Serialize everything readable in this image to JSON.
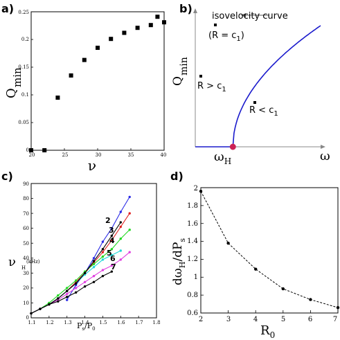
{
  "colors": {
    "c_line": "#2222cc",
    "c_s1": "#000000",
    "c_s2": "#2a2ae6",
    "c_s3": "#e02020",
    "c_s4": "#22d822",
    "c_s5": "#22d8d8",
    "c_s6": "#e040e0",
    "c_s7": "#000000",
    "b_curve": "#1a1acc",
    "b_point": "#cc2255"
  },
  "chart_data": [
    {
      "type": "scatter",
      "panel_label": "a)",
      "xlabel": "ν",
      "ylabel_main": "Q",
      "ylabel_sub": "min",
      "xlim": [
        20,
        40
      ],
      "ylim": [
        0,
        0.25
      ],
      "xticks": [
        "20",
        "25",
        "30",
        "35",
        "40"
      ],
      "yticks": [
        "0",
        "0.05",
        "0.1",
        "0.15",
        "0.2",
        "0.25"
      ],
      "x": [
        20,
        22,
        24,
        26,
        28,
        30,
        32,
        34,
        36,
        38,
        39,
        40
      ],
      "y": [
        0.0,
        0.0,
        0.095,
        0.135,
        0.163,
        0.185,
        0.201,
        0.212,
        0.221,
        0.226,
        0.241,
        0.231
      ]
    },
    {
      "type": "line",
      "panel_label": "b)",
      "xlabel": "ω",
      "ylabel_main": "Q",
      "ylabel_sub": "min",
      "point_label_main": "ω",
      "point_label_sub": "H",
      "annotation": "isovelocity curve",
      "label_equal": "(R = c",
      "label_equal_sub": "1",
      "label_equal_close": ")",
      "label_greater": "R > c",
      "label_greater_sub": "1",
      "label_less": "R < c",
      "label_less_sub": "1",
      "omega_h": 0.3,
      "curve_shape": "sqrt"
    },
    {
      "type": "line",
      "panel_label": "c)",
      "xlabel_main": "P",
      "xlabel_sub1": "s",
      "xlabel_div": "/P",
      "xlabel_sub2": "0",
      "ylabel_main": "ν",
      "ylabel_sub": "H",
      "ylabel_unit": "(kHz)",
      "xlim": [
        1.1,
        1.8
      ],
      "ylim": [
        0,
        90
      ],
      "xticks": [
        "1.1",
        "1.2",
        "1.3",
        "1.4",
        "1.5",
        "1.6",
        "1.7",
        "1.8"
      ],
      "yticks": [
        "0",
        "10",
        "20",
        "30",
        "40",
        "50",
        "60",
        "70",
        "80",
        "90"
      ],
      "series": [
        {
          "name": "2",
          "color_key": "c_s2",
          "x": [
            1.3,
            1.35,
            1.4,
            1.45,
            1.5,
            1.55,
            1.6,
            1.65
          ],
          "y": [
            12,
            22,
            30,
            40,
            51,
            60,
            71,
            81
          ]
        },
        {
          "name": "3",
          "color_key": "c_s3",
          "x": [
            1.1,
            1.15,
            1.2,
            1.25,
            1.3,
            1.35,
            1.4,
            1.45,
            1.5,
            1.55,
            1.6,
            1.65
          ],
          "y": [
            3,
            6,
            9,
            13,
            18,
            24,
            30,
            37,
            44,
            52,
            61,
            70
          ]
        },
        {
          "name": "4",
          "color_key": "c_s4",
          "x": [
            1.1,
            1.15,
            1.2,
            1.25,
            1.3,
            1.35,
            1.4,
            1.45,
            1.5,
            1.55,
            1.6,
            1.65
          ],
          "y": [
            3,
            6,
            10,
            15,
            20,
            25,
            31,
            36,
            41,
            46,
            53,
            59
          ]
        },
        {
          "name": "5",
          "color_key": "c_s5",
          "x": [
            1.1,
            1.15,
            1.2,
            1.25,
            1.3,
            1.35,
            1.4,
            1.45,
            1.5,
            1.55,
            1.6
          ],
          "y": [
            3,
            6,
            9,
            13,
            18,
            23,
            29,
            34,
            39,
            42,
            45
          ]
        },
        {
          "name": "6",
          "color_key": "c_s6",
          "x": [
            1.1,
            1.15,
            1.2,
            1.25,
            1.3,
            1.35,
            1.4,
            1.45,
            1.5,
            1.55,
            1.6,
            1.65
          ],
          "y": [
            3,
            6,
            9,
            12,
            16,
            20,
            24,
            28,
            32,
            35,
            39,
            44
          ]
        },
        {
          "name": "7",
          "color_key": "c_s7",
          "x": [
            1.1,
            1.15,
            1.2,
            1.25,
            1.3,
            1.35,
            1.4,
            1.45,
            1.5,
            1.55
          ],
          "y": [
            3,
            6,
            9,
            11,
            14,
            17,
            21,
            24,
            28,
            31
          ]
        },
        {
          "name": "",
          "color_key": "c_s1",
          "x": [
            1.1,
            1.15,
            1.2,
            1.25,
            1.3,
            1.35,
            1.4,
            1.45,
            1.5,
            1.55,
            1.6
          ],
          "y": [
            3,
            6,
            9,
            13,
            18,
            23,
            30,
            38,
            46,
            55,
            64
          ]
        }
      ]
    },
    {
      "type": "line",
      "panel_label": "d)",
      "xlabel_main": "R",
      "xlabel_sub": "0",
      "ylabel_main": "dω",
      "ylabel_sub1": "H",
      "ylabel_div": "/dP",
      "ylabel_sub2": "s",
      "xlim": [
        2,
        7
      ],
      "ylim": [
        0.6,
        2
      ],
      "xticks": [
        "2",
        "3",
        "4",
        "5",
        "6",
        "7"
      ],
      "yticks": [
        "0.6",
        "0.8",
        "1",
        "1.2",
        "1.4",
        "1.6",
        "1.8",
        "2"
      ],
      "x": [
        2,
        3,
        4,
        5,
        6,
        7
      ],
      "y": [
        1.96,
        1.38,
        1.09,
        0.87,
        0.75,
        0.66
      ]
    }
  ]
}
